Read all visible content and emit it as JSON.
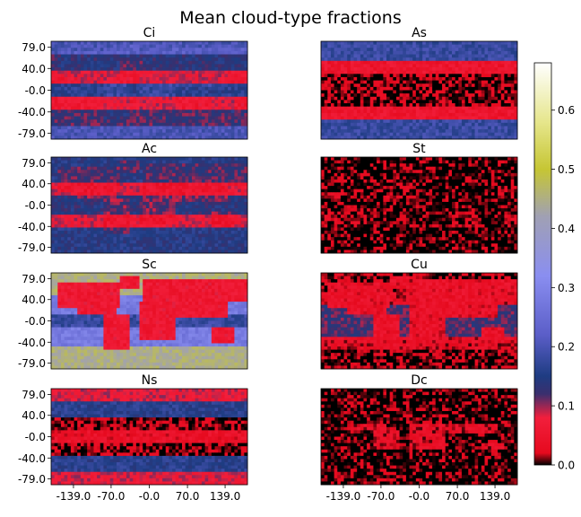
{
  "figure": {
    "title": "Mean cloud-type fractions",
    "lat_ticks": [
      "79.0",
      "40.0",
      "-0.0",
      "-40.0",
      "-79.0"
    ],
    "lon_ticks": [
      "-139.0",
      "-70.0",
      "-0.0",
      "70.0",
      "139.0"
    ]
  },
  "colormap": {
    "name": "gist_stern-like",
    "stops": [
      {
        "v": 0.0,
        "color": "#000000"
      },
      {
        "v": 0.02,
        "color": "#e60a1e"
      },
      {
        "v": 0.08,
        "color": "#f21f3c"
      },
      {
        "v": 0.12,
        "color": "#3a2f6e"
      },
      {
        "v": 0.15,
        "color": "#1e3c82"
      },
      {
        "v": 0.22,
        "color": "#5b5ec8"
      },
      {
        "v": 0.32,
        "color": "#8a8ef0"
      },
      {
        "v": 0.42,
        "color": "#a0a0b4"
      },
      {
        "v": 0.5,
        "color": "#c6c634"
      },
      {
        "v": 0.58,
        "color": "#e6e68c"
      },
      {
        "v": 0.68,
        "color": "#ffffff"
      }
    ]
  },
  "chart_data": {
    "type": "heatmap",
    "title": "Mean cloud-type fractions",
    "panels": [
      {
        "name": "Ci",
        "approx_mean": 0.13,
        "pattern": "tropics and high latitudes elevated; subtropical oceans low"
      },
      {
        "name": "As",
        "approx_mean": 0.07,
        "pattern": "higher at high latitudes; very low in tropics and subtropics"
      },
      {
        "name": "Ac",
        "approx_mean": 0.12,
        "pattern": "moderate over oceans and mid-latitudes"
      },
      {
        "name": "St",
        "approx_mean": 0.01,
        "pattern": "near zero almost everywhere; slightly higher in subtropical eastern oceans"
      },
      {
        "name": "Sc",
        "approx_mean": 0.3,
        "pattern": "high over oceans, highest at high latitudes (up to ~0.5); low over continents"
      },
      {
        "name": "Cu",
        "approx_mean": 0.06,
        "pattern": "moderate in trade-wind regions; low elsewhere"
      },
      {
        "name": "Ns",
        "approx_mean": 0.1,
        "pattern": "higher in mid/high latitude storm tracks; low in subtropics"
      },
      {
        "name": "Dc",
        "approx_mean": 0.01,
        "pattern": "low; higher over tropical land (Amazon, Africa, Maritime Continent)"
      }
    ],
    "xlabel": "",
    "ylabel": "",
    "x_ticks": [
      -139.0,
      -70.0,
      0.0,
      70.0,
      139.0
    ],
    "y_ticks": [
      79.0,
      40.0,
      0.0,
      -40.0,
      -79.0
    ],
    "xlim": [
      -180,
      180
    ],
    "ylim": [
      -90,
      90
    ],
    "colorbar": {
      "range": [
        0.0,
        0.68
      ],
      "ticks": [
        "0.0",
        "0.1",
        "0.2",
        "0.3",
        "0.4",
        "0.5",
        "0.6"
      ]
    },
    "grid": false
  }
}
